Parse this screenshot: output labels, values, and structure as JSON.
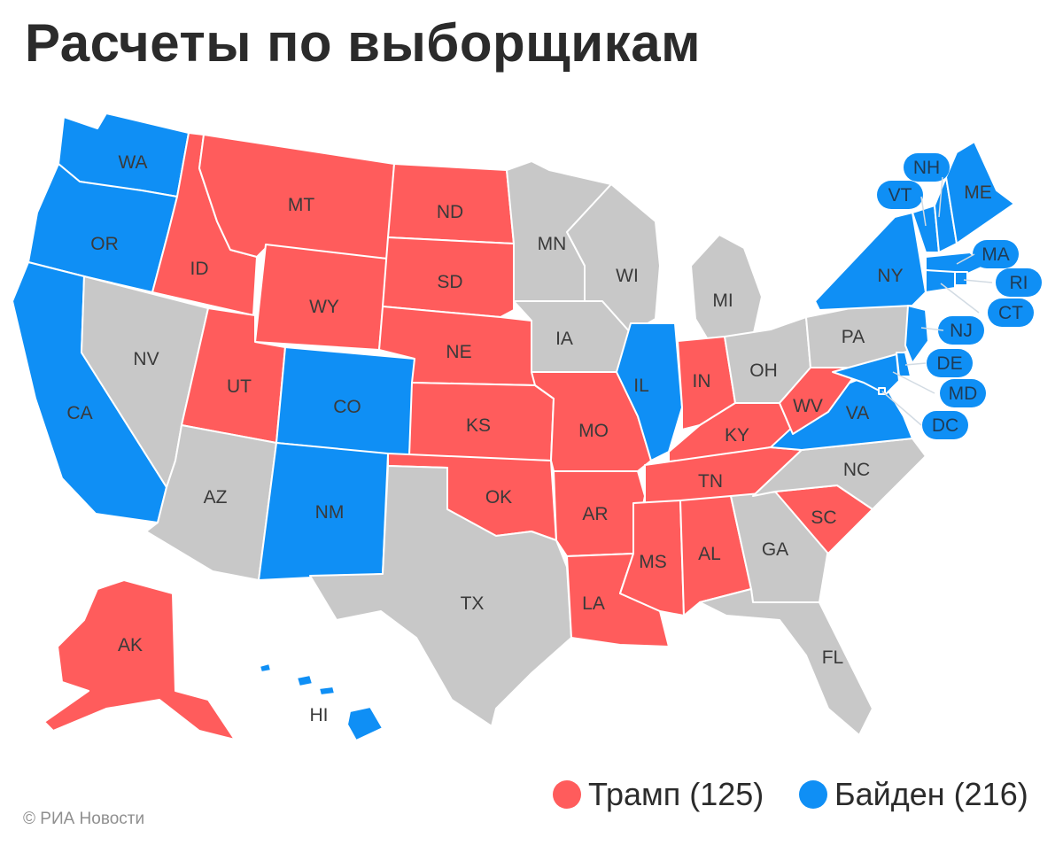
{
  "title": "Расчеты по выборщикам",
  "colors": {
    "trump": "#ff5c5c",
    "biden": "#0f8ff5",
    "undecided": "#c8c8c8"
  },
  "legend": [
    {
      "label": "Трамп (125)",
      "party": "trump"
    },
    {
      "label": "Байден (216)",
      "party": "biden"
    }
  ],
  "credit": "© РИА Новости",
  "states": [
    {
      "code": "WA",
      "party": "biden"
    },
    {
      "code": "OR",
      "party": "biden"
    },
    {
      "code": "CA",
      "party": "biden"
    },
    {
      "code": "ID",
      "party": "trump"
    },
    {
      "code": "NV",
      "party": "undecided"
    },
    {
      "code": "MT",
      "party": "trump"
    },
    {
      "code": "WY",
      "party": "trump"
    },
    {
      "code": "UT",
      "party": "trump"
    },
    {
      "code": "AZ",
      "party": "undecided"
    },
    {
      "code": "CO",
      "party": "biden"
    },
    {
      "code": "NM",
      "party": "biden"
    },
    {
      "code": "ND",
      "party": "trump"
    },
    {
      "code": "SD",
      "party": "trump"
    },
    {
      "code": "NE",
      "party": "trump"
    },
    {
      "code": "KS",
      "party": "trump"
    },
    {
      "code": "OK",
      "party": "trump"
    },
    {
      "code": "TX",
      "party": "undecided"
    },
    {
      "code": "MN",
      "party": "undecided"
    },
    {
      "code": "IA",
      "party": "undecided"
    },
    {
      "code": "MO",
      "party": "trump"
    },
    {
      "code": "AR",
      "party": "trump"
    },
    {
      "code": "LA",
      "party": "trump"
    },
    {
      "code": "WI",
      "party": "undecided"
    },
    {
      "code": "IL",
      "party": "biden"
    },
    {
      "code": "MI",
      "party": "undecided"
    },
    {
      "code": "IN",
      "party": "trump"
    },
    {
      "code": "OH",
      "party": "undecided"
    },
    {
      "code": "KY",
      "party": "trump"
    },
    {
      "code": "TN",
      "party": "trump"
    },
    {
      "code": "MS",
      "party": "trump"
    },
    {
      "code": "AL",
      "party": "trump"
    },
    {
      "code": "GA",
      "party": "undecided"
    },
    {
      "code": "FL",
      "party": "undecided"
    },
    {
      "code": "SC",
      "party": "trump"
    },
    {
      "code": "NC",
      "party": "undecided"
    },
    {
      "code": "VA",
      "party": "biden"
    },
    {
      "code": "WV",
      "party": "trump"
    },
    {
      "code": "PA",
      "party": "undecided"
    },
    {
      "code": "NY",
      "party": "biden"
    },
    {
      "code": "ME",
      "party": "biden"
    },
    {
      "code": "AK",
      "party": "trump"
    },
    {
      "code": "HI",
      "party": "biden"
    },
    {
      "code": "VT",
      "party": "biden"
    },
    {
      "code": "NH",
      "party": "biden"
    },
    {
      "code": "MA",
      "party": "biden"
    },
    {
      "code": "RI",
      "party": "biden"
    },
    {
      "code": "CT",
      "party": "biden"
    },
    {
      "code": "NJ",
      "party": "biden"
    },
    {
      "code": "DE",
      "party": "biden"
    },
    {
      "code": "MD",
      "party": "biden"
    },
    {
      "code": "DC",
      "party": "biden"
    }
  ]
}
